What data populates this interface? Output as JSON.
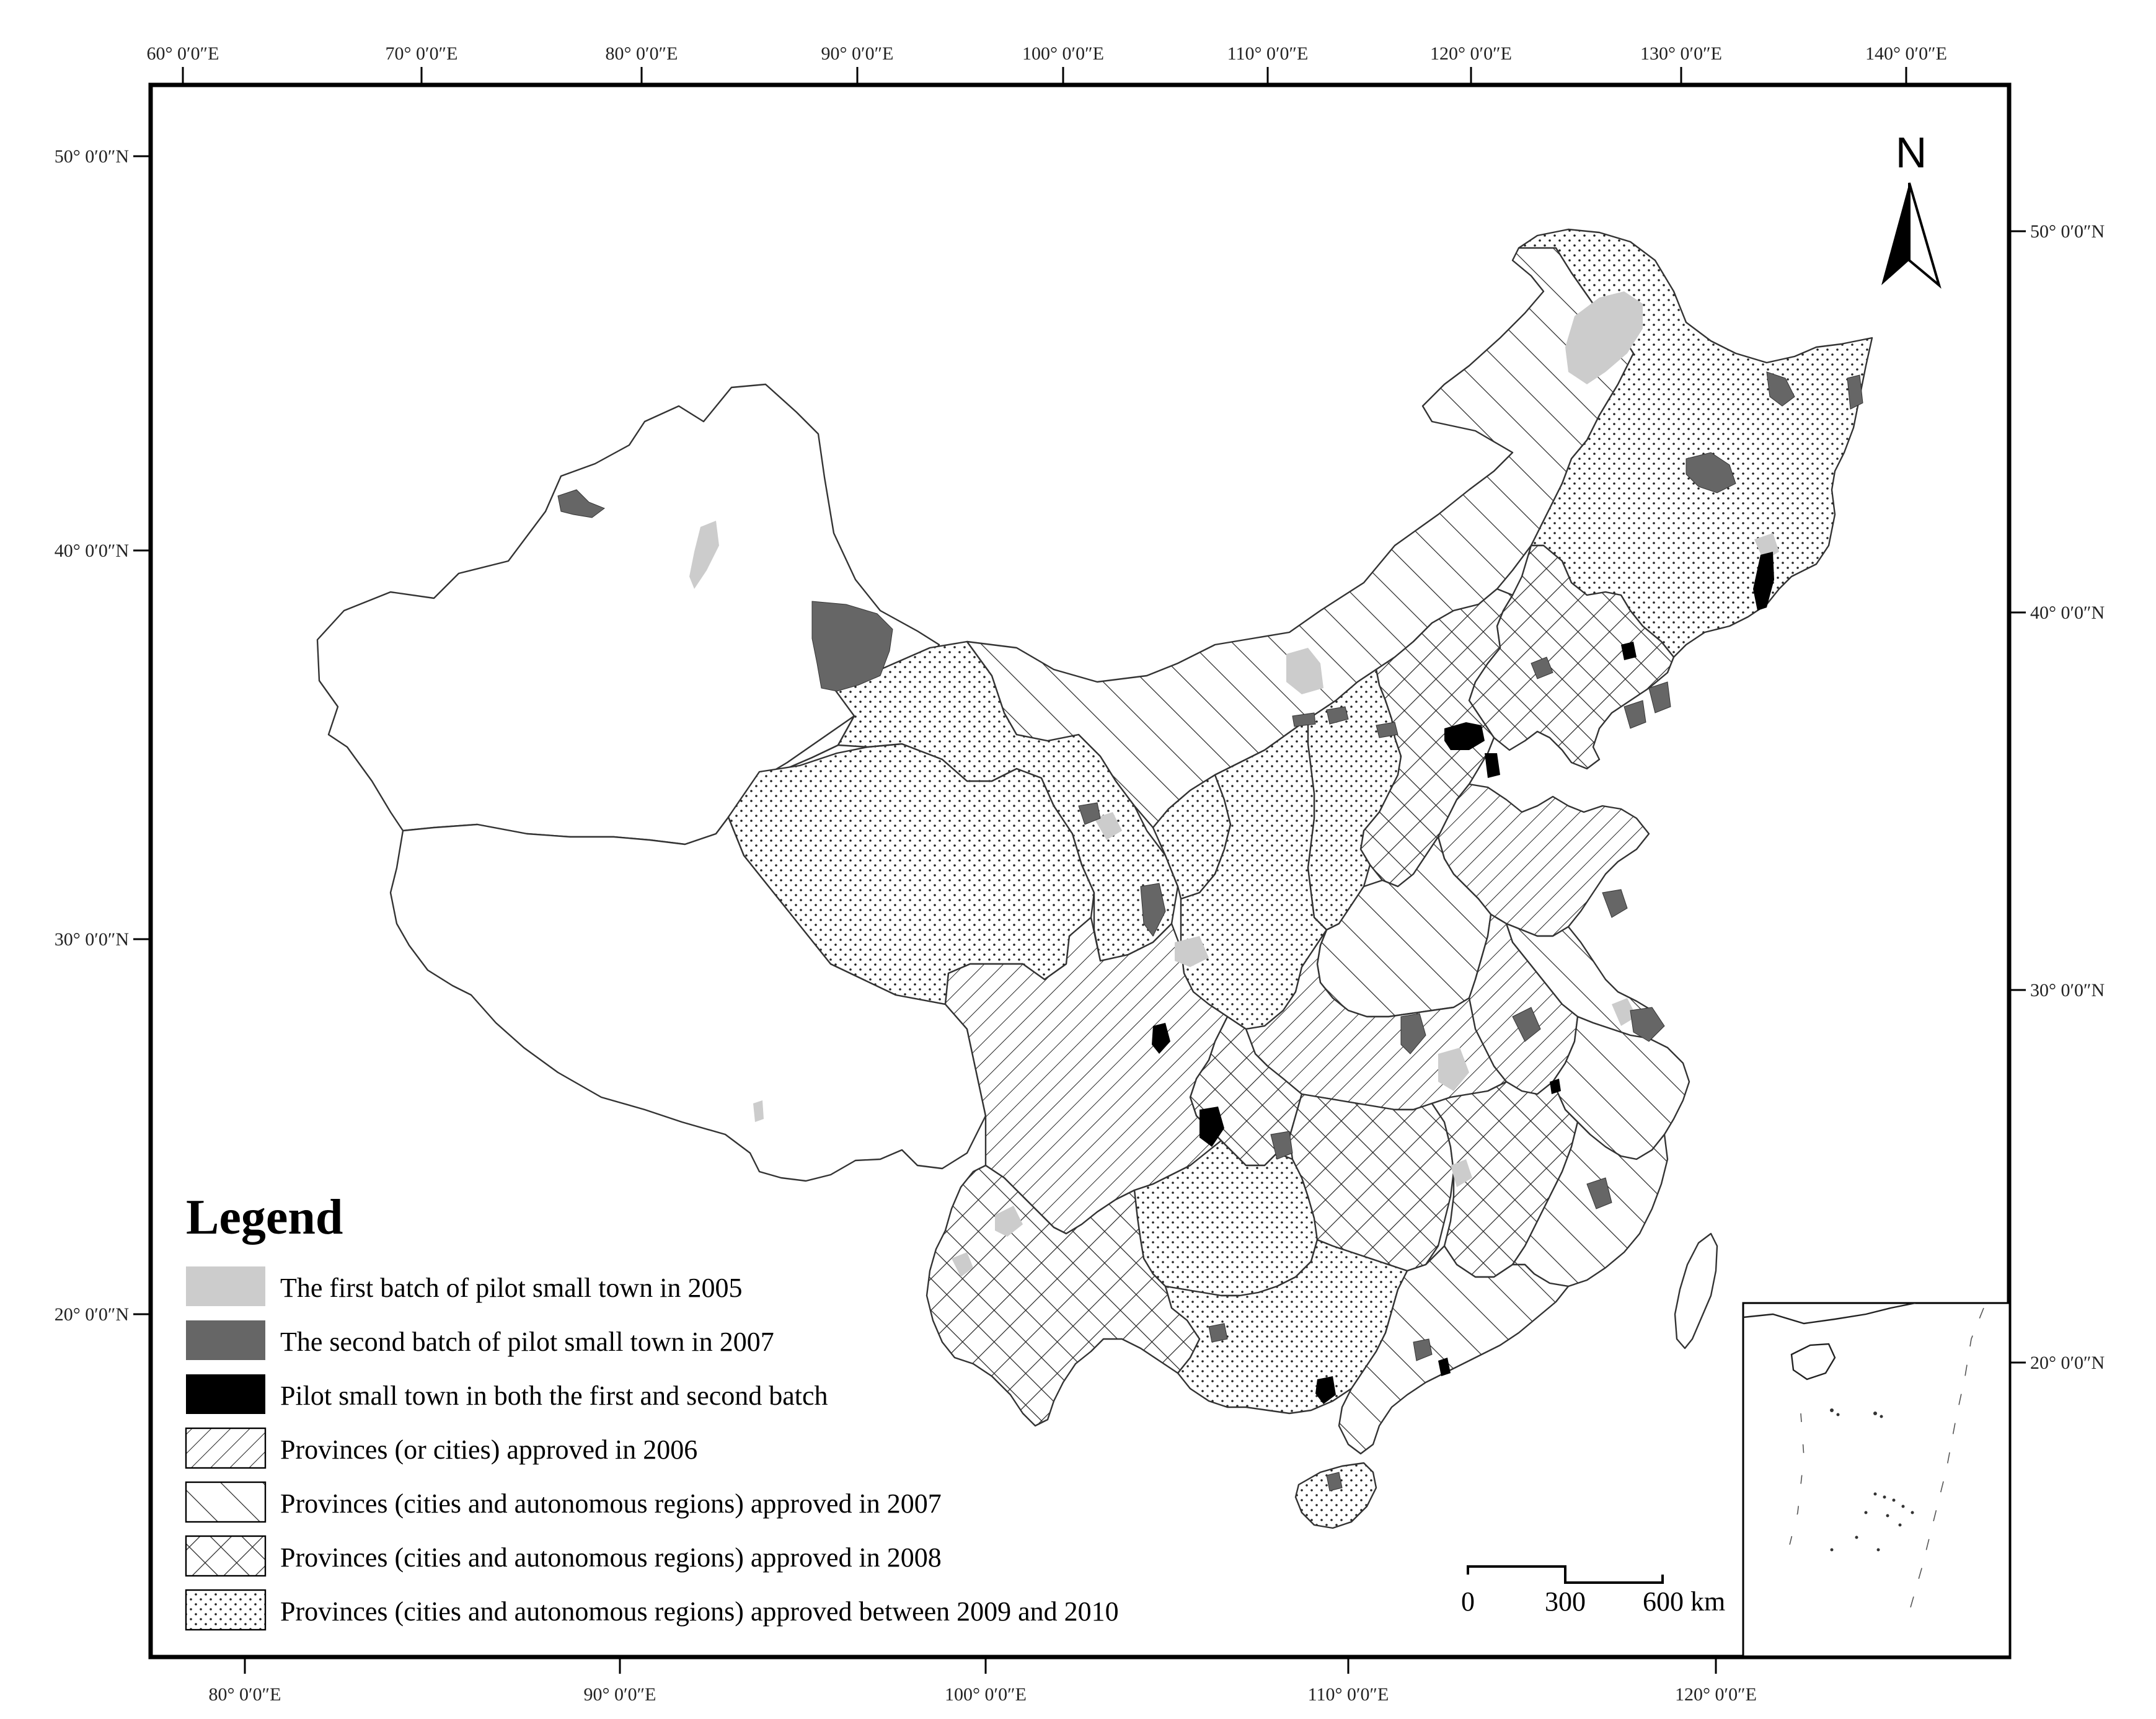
{
  "map": {
    "top_lon_labels": [
      "60° 0′0″E",
      "70° 0′0″E",
      "80° 0′0″E",
      "90° 0′0″E",
      "100° 0′0″E",
      "110° 0′0″E",
      "120° 0′0″E",
      "130° 0′0″E",
      "140° 0′0″E"
    ],
    "bottom_lon_labels": [
      "80° 0′0″E",
      "90° 0′0″E",
      "100° 0′0″E",
      "110° 0′0″E",
      "120° 0′0″E"
    ],
    "left_lat_labels": [
      "50° 0′0″N",
      "40° 0′0″N",
      "30° 0′0″N",
      "20° 0′0″N"
    ],
    "right_lat_labels": [
      "50° 0′0″N",
      "40° 0′0″N",
      "30° 0′0″N",
      "20° 0′0″N"
    ],
    "north_arrow_label": "N"
  },
  "legend": {
    "title": "Legend",
    "items": [
      {
        "label": "The first batch of pilot small town in 2005",
        "symbol": "solid-light",
        "color": "#cccccc"
      },
      {
        "label": "The second batch of pilot small town in 2007",
        "symbol": "solid-dark",
        "color": "#666666"
      },
      {
        "label": "Pilot small town in both the first and second batch",
        "symbol": "solid-black",
        "color": "#000000"
      },
      {
        "label": "Provinces (or cities) approved in 2006",
        "symbol": "dense-diagonal-hatch"
      },
      {
        "label": "Provinces (cities and autonomous regions) approved in 2007",
        "symbol": "wide-diagonal-hatch"
      },
      {
        "label": "Provinces (cities and autonomous regions) approved in 2008",
        "symbol": "cross-hatch"
      },
      {
        "label": "Provinces (cities and autonomous regions) approved between 2009 and 2010",
        "symbol": "dot-pattern"
      }
    ]
  },
  "scale_bar": {
    "labels": [
      "0",
      "300",
      "600 km"
    ]
  },
  "colors": {
    "first_batch": "#cccccc",
    "second_batch": "#666666",
    "both_batches": "#000000",
    "frame": "#000000"
  }
}
